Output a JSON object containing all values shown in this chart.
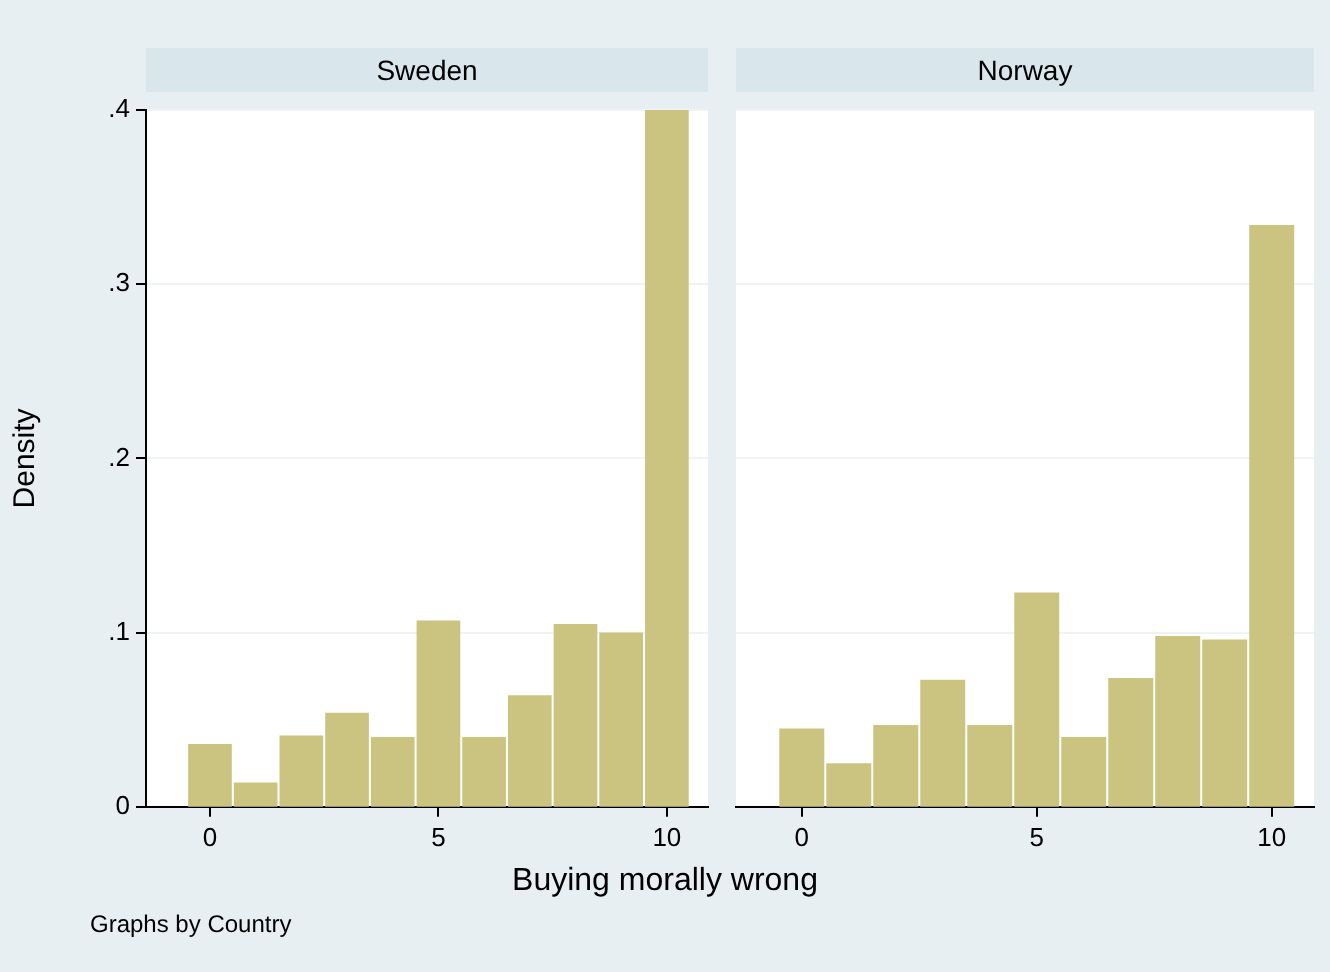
{
  "chart_data": [
    {
      "type": "histogram",
      "title": "Sweden",
      "xlabel": "Buying morally wrong",
      "ylabel": "Density",
      "annotations": [
        "Graphs by Country"
      ],
      "bins": [
        -0.5,
        0.5,
        1.5,
        2.5,
        3.5,
        4.5,
        5.5,
        6.5,
        7.5,
        8.5,
        9.5,
        10.5
      ],
      "values": [
        0.036,
        0.014,
        0.041,
        0.054,
        0.04,
        0.107,
        0.04,
        0.064,
        0.105,
        0.1,
        0.4
      ],
      "color": "#cbc480",
      "xlim": [
        -1.4,
        10.9
      ],
      "xticks": [
        0,
        5,
        10
      ],
      "ylim": [
        0,
        0.4
      ],
      "yticks": [
        0,
        {
          "value": 0.1,
          "label": ".1"
        },
        {
          "value": 0.2,
          "label": ".2"
        },
        {
          "value": 0.3,
          "label": ".3"
        },
        {
          "value": 0.4,
          "label": ".4"
        }
      ],
      "grid": "y"
    },
    {
      "type": "histogram",
      "title": "Norway",
      "bins": [
        -0.5,
        0.5,
        1.5,
        2.5,
        3.5,
        4.5,
        5.5,
        6.5,
        7.5,
        8.5,
        9.5,
        10.5
      ],
      "values": [
        0.045,
        0.025,
        0.047,
        0.073,
        0.047,
        0.123,
        0.04,
        0.074,
        0.098,
        0.096,
        0.334
      ],
      "color": "#cbc480",
      "xlim": [
        -1.4,
        10.9
      ],
      "xticks": [
        0,
        5,
        10
      ],
      "ylim": [
        0,
        0.4
      ],
      "yticks": [
        0,
        0.1,
        0.2,
        0.3,
        0.4
      ],
      "grid": "y",
      "tick_labels": "x"
    }
  ]
}
